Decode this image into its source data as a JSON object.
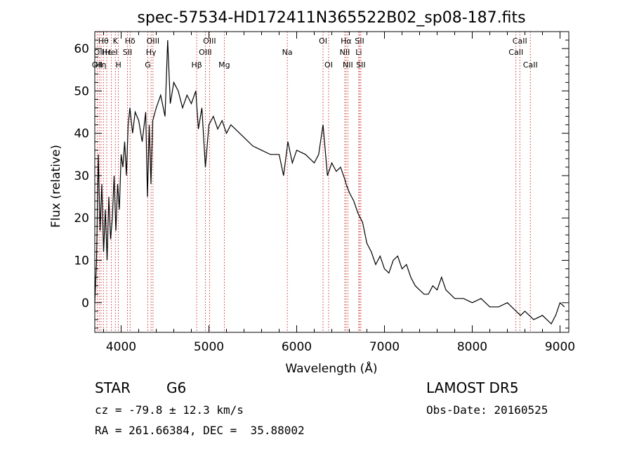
{
  "chart_data": {
    "type": "line",
    "title": "spec-57534-HD172411N365522B02_sp08-187.fits",
    "xlabel": "Wavelength (Å)",
    "ylabel": "Flux (relative)",
    "xlim": [
      3700,
      9100
    ],
    "ylim": [
      -7,
      64
    ],
    "x_ticks": [
      4000,
      5000,
      6000,
      7000,
      8000,
      9000
    ],
    "y_ticks": [
      0,
      10,
      20,
      30,
      40,
      50,
      60
    ],
    "grid": false,
    "line_color": "#000000",
    "marker_color": "#c00000",
    "series": [
      {
        "x": [
          3700,
          3720,
          3740,
          3760,
          3780,
          3800,
          3820,
          3840,
          3860,
          3880,
          3900,
          3920,
          3940,
          3960,
          3980,
          4000,
          4020,
          4040,
          4060,
          4080,
          4100,
          4130,
          4160,
          4200,
          4240,
          4280,
          4300,
          4320,
          4340,
          4360,
          4400,
          4450,
          4500,
          4530,
          4560,
          4600,
          4650,
          4700,
          4750,
          4800,
          4850,
          4880,
          4920,
          4960,
          5000,
          5050,
          5100,
          5150,
          5200,
          5250,
          5300,
          5400,
          5500,
          5600,
          5700,
          5800,
          5850,
          5900,
          5950,
          6000,
          6100,
          6200,
          6250,
          6300,
          6350,
          6400,
          6450,
          6500,
          6550,
          6563,
          6600,
          6650,
          6700,
          6750,
          6800,
          6850,
          6900,
          6950,
          7000,
          7050,
          7100,
          7150,
          7200,
          7250,
          7300,
          7350,
          7400,
          7450,
          7500,
          7550,
          7600,
          7650,
          7700,
          7750,
          7800,
          7900,
          8000,
          8100,
          8200,
          8300,
          8400,
          8500,
          8550,
          8600,
          8650,
          8700,
          8800,
          8850,
          8900,
          8950,
          9000,
          9050
        ],
        "y": [
          0,
          10,
          35,
          17,
          28,
          12,
          22,
          10,
          25,
          15,
          20,
          30,
          17,
          28,
          22,
          35,
          32,
          38,
          30,
          42,
          46,
          40,
          45,
          43,
          38,
          45,
          25,
          42,
          28,
          43,
          46,
          49,
          44,
          62,
          47,
          52,
          50,
          46,
          49,
          47,
          50,
          41,
          46,
          32,
          42,
          44,
          41,
          43,
          40,
          42,
          41,
          39,
          37,
          36,
          35,
          35,
          30,
          38,
          33,
          36,
          35,
          33,
          35,
          42,
          30,
          33,
          31,
          32,
          29,
          28,
          26,
          24,
          21,
          19,
          14,
          12,
          9,
          11,
          8,
          7,
          10,
          11,
          8,
          9,
          6,
          4,
          3,
          2,
          2,
          4,
          3,
          6,
          3,
          2,
          1,
          1,
          0,
          1,
          -1,
          -1,
          0,
          -2,
          -3,
          -2,
          -3,
          -4,
          -3,
          -4,
          -5,
          -3,
          0,
          -1
        ]
      }
    ],
    "lines": [
      {
        "x": 3727,
        "label": "OII",
        "row": 3
      },
      {
        "x": 3750,
        "label": "OII",
        "row": 2
      },
      {
        "x": 3771,
        "label": "Hη",
        "row": 3
      },
      {
        "x": 3798,
        "label": "Hθ",
        "row": 1
      },
      {
        "x": 3836,
        "label": "Hε",
        "row": 2
      },
      {
        "x": 3889,
        "label": "HeI",
        "row": 2
      },
      {
        "x": 3934,
        "label": "K",
        "row": 1
      },
      {
        "x": 3969,
        "label": "H",
        "row": 3
      },
      {
        "x": 4072,
        "label": "SII",
        "row": 2
      },
      {
        "x": 4102,
        "label": "Hδ",
        "row": 1
      },
      {
        "x": 4304,
        "label": "G",
        "row": 3
      },
      {
        "x": 4341,
        "label": "Hγ",
        "row": 2
      },
      {
        "x": 4363,
        "label": "OIII",
        "row": 1
      },
      {
        "x": 4861,
        "label": "Hβ",
        "row": 3
      },
      {
        "x": 4959,
        "label": "OIII",
        "row": 2
      },
      {
        "x": 5007,
        "label": "OIII",
        "row": 1
      },
      {
        "x": 5175,
        "label": "Mg",
        "row": 3
      },
      {
        "x": 5893,
        "label": "Na",
        "row": 2
      },
      {
        "x": 6300,
        "label": "OI",
        "row": 1
      },
      {
        "x": 6364,
        "label": "OI",
        "row": 3
      },
      {
        "x": 6548,
        "label": "NII",
        "row": 2
      },
      {
        "x": 6563,
        "label": "Hα",
        "row": 1
      },
      {
        "x": 6583,
        "label": "NII",
        "row": 3
      },
      {
        "x": 6707,
        "label": "Li",
        "row": 2
      },
      {
        "x": 6716,
        "label": "SII",
        "row": 1
      },
      {
        "x": 6731,
        "label": "SII",
        "row": 3
      },
      {
        "x": 8498,
        "label": "CaII",
        "row": 2
      },
      {
        "x": 8542,
        "label": "CaII",
        "row": 1
      },
      {
        "x": 8662,
        "label": "CaII",
        "row": 3
      }
    ]
  },
  "info": {
    "class_label": "STAR",
    "subclass": "G6",
    "survey": "LAMOST DR5",
    "cz": "cz = -79.8 ± 12.3 km/s",
    "obs_date": "Obs-Date: 20160525",
    "coords": "RA = 261.66384, DEC =  35.88002"
  }
}
